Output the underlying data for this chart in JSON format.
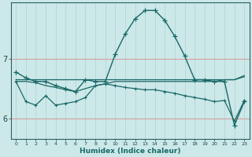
{
  "xlabel": "Humidex (Indice chaleur)",
  "bg_color": "#cce8e8",
  "line_color": "#1a6868",
  "grid_h_color": "#d8a0a0",
  "grid_v_color": "#b8d8d8",
  "xlim": [
    -0.5,
    23.5
  ],
  "ylim": [
    5.65,
    7.95
  ],
  "yticks": [
    6,
    7
  ],
  "xticks": [
    0,
    1,
    2,
    3,
    4,
    5,
    6,
    7,
    8,
    9,
    10,
    11,
    12,
    13,
    14,
    15,
    16,
    17,
    18,
    19,
    20,
    21,
    22,
    23
  ],
  "line_main": [
    6.78,
    6.68,
    6.62,
    6.62,
    6.55,
    6.5,
    6.45,
    6.65,
    6.62,
    6.62,
    7.08,
    7.42,
    7.68,
    7.82,
    7.82,
    7.65,
    7.38,
    7.05,
    6.65,
    6.65,
    6.62,
    6.62,
    5.88,
    6.28
  ],
  "line_flat": [
    6.65,
    6.65,
    6.65,
    6.65,
    6.65,
    6.65,
    6.65,
    6.65,
    6.65,
    6.65,
    6.65,
    6.65,
    6.65,
    6.65,
    6.65,
    6.65,
    6.65,
    6.65,
    6.65,
    6.65,
    6.65,
    6.65,
    6.65,
    6.72
  ],
  "line_wiggly": [
    6.62,
    6.28,
    6.22,
    6.38,
    6.22,
    6.25,
    6.28,
    6.35,
    6.55,
    6.58,
    6.55,
    6.52,
    6.5,
    6.48,
    6.48,
    6.45,
    6.42,
    6.38,
    6.35,
    6.32,
    6.28,
    6.3,
    5.95,
    6.3
  ],
  "line_mid": [
    6.62,
    6.62,
    6.6,
    6.55,
    6.52,
    6.48,
    6.45,
    6.5,
    6.55,
    6.58,
    6.62,
    6.62,
    6.62,
    6.62,
    6.62,
    6.62,
    6.62,
    6.62,
    6.62,
    6.62,
    6.62,
    6.65,
    6.65,
    6.7
  ]
}
